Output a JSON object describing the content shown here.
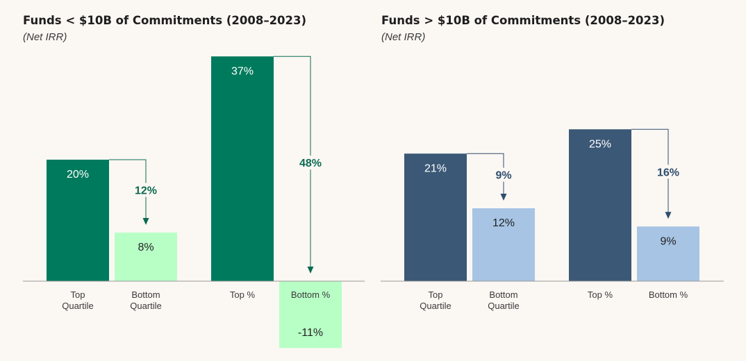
{
  "colors": {
    "background": "#fbf7f3",
    "left_top": "#007a5d",
    "left_bottom": "#b8ffc6",
    "left_delta": "#0c6b52",
    "right_top": "#3b5876",
    "right_bottom": "#a7c4e4",
    "right_delta": "#2f4e6e",
    "axis": "#9a9a9a"
  },
  "chart_data": [
    {
      "type": "bar",
      "title": "Funds < $10B of Commitments (2008–2023)",
      "subtitle": "(Net IRR)",
      "categories": [
        "Top\nQuartile",
        "Bottom\nQuartile",
        "Top %",
        "Bottom %"
      ],
      "values": [
        20,
        8,
        37,
        -11
      ],
      "value_labels": [
        "20%",
        "8%",
        "37%",
        "-11%"
      ],
      "differences": [
        {
          "from": 0,
          "to": 1,
          "label": "12%"
        },
        {
          "from": 2,
          "to": 3,
          "label": "48%"
        }
      ],
      "ylim": [
        -11,
        37
      ],
      "grid": false,
      "legend": "none"
    },
    {
      "type": "bar",
      "title": "Funds > $10B of Commitments (2008–2023)",
      "subtitle": "(Net IRR)",
      "categories": [
        "Top\nQuartile",
        "Bottom\nQuartile",
        "Top %",
        "Bottom %"
      ],
      "values": [
        21,
        12,
        25,
        9
      ],
      "value_labels": [
        "21%",
        "12%",
        "25%",
        "9%"
      ],
      "differences": [
        {
          "from": 0,
          "to": 1,
          "label": "9%"
        },
        {
          "from": 2,
          "to": 3,
          "label": "16%"
        }
      ],
      "ylim": [
        0,
        25
      ],
      "grid": false,
      "legend": "none"
    }
  ]
}
